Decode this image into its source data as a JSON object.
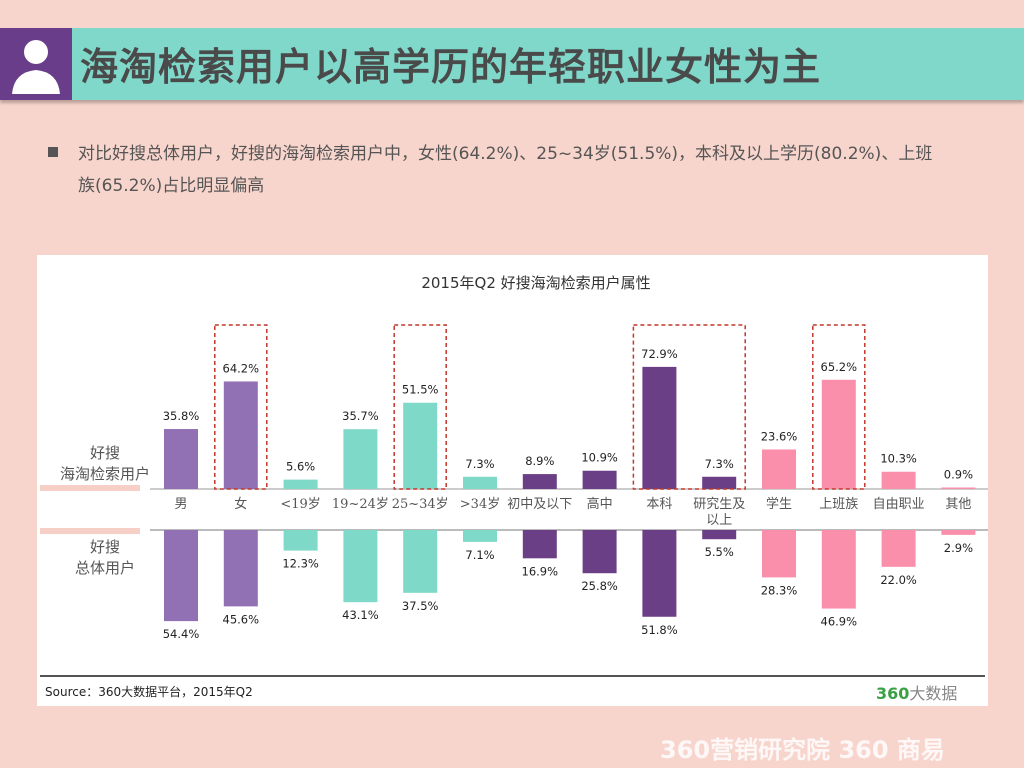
{
  "header": {
    "title": "海淘检索用户以高学历的年轻职业女性为主",
    "icon": "user-silhouette-icon"
  },
  "bullet": {
    "text": "对比好搜总体用户，好搜的海淘检索用户中，女性(64.2%)、25~34岁(51.5%)，本科及以上学历(80.2%)、上班族(65.2%)占比明显偏高"
  },
  "footer": {
    "source": "Source：360大数据平台，2015年Q2",
    "logo_num": "360",
    "logo_text": "大数据",
    "watermark": "360营销研究院  360 商易"
  },
  "chart_data": {
    "type": "bar",
    "title": "2015年Q2 好搜海淘检索用户属性",
    "categories": [
      "男",
      "女",
      "<19岁",
      "19~24岁",
      "25~34岁",
      ">34岁",
      "初中及以下",
      "高中",
      "本科",
      "研究生及以上",
      "学生",
      "上班族",
      "自由职业",
      "其他"
    ],
    "series": [
      {
        "name": "好搜\n海淘检索用户",
        "values": [
          35.8,
          64.2,
          5.6,
          35.7,
          51.5,
          7.3,
          8.9,
          10.9,
          72.9,
          7.3,
          23.6,
          65.2,
          10.3,
          0.9
        ]
      },
      {
        "name": "好搜\n总体用户",
        "values": [
          54.4,
          45.6,
          12.3,
          43.1,
          37.5,
          7.1,
          16.9,
          25.8,
          51.8,
          5.5,
          28.3,
          46.9,
          22.0,
          2.9
        ]
      }
    ],
    "group_colors": [
      "#9170b4",
      "#9170b4",
      "#7fd9c8",
      "#7fd9c8",
      "#7fd9c8",
      "#7fd9c8",
      "#6b3f86",
      "#6b3f86",
      "#6b3f86",
      "#6b3f86",
      "#f98fab",
      "#f98fab",
      "#f98fab",
      "#f98fab"
    ],
    "highlighted": [
      "女",
      "25~34岁",
      "本科",
      "研究生及以上",
      "上班族"
    ],
    "highlight_color": "#c0392b"
  }
}
